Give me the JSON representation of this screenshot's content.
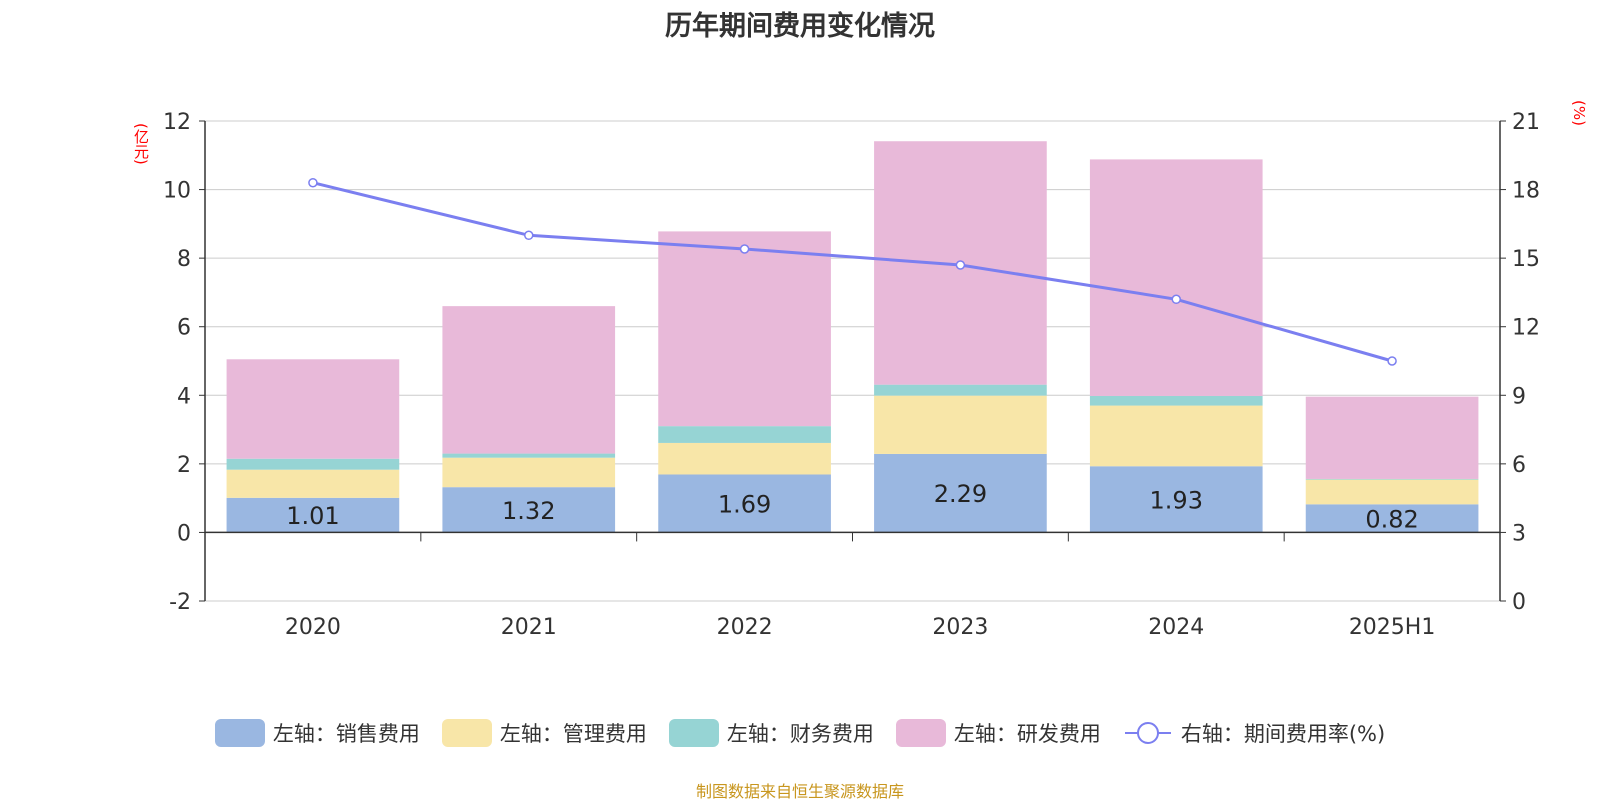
{
  "title": "历年期间费用变化情况",
  "source_note": "制图数据来自恒生聚源数据库",
  "chart_data": {
    "type": "bar",
    "stacked": true,
    "title": "历年期间费用变化情况",
    "categories": [
      "2020",
      "2021",
      "2022",
      "2023",
      "2024",
      "2025H1"
    ],
    "left_axis": {
      "unit": "(亿元)",
      "ylim": [
        -2,
        12
      ],
      "ticks": [
        -2,
        0,
        2,
        4,
        6,
        8,
        10,
        12
      ]
    },
    "right_axis": {
      "unit": "(%)",
      "ylim": [
        0,
        21
      ],
      "ticks": [
        0,
        3,
        6,
        9,
        12,
        15,
        18,
        21
      ]
    },
    "series": [
      {
        "name": "左轴：销售费用",
        "axis": "left",
        "type": "bar",
        "color": "#9ab7e1",
        "values": [
          1.01,
          1.32,
          1.69,
          2.29,
          1.93,
          0.82
        ],
        "show_labels": true
      },
      {
        "name": "左轴：管理费用",
        "axis": "left",
        "type": "bar",
        "color": "#f8e6a8",
        "values": [
          0.82,
          0.86,
          0.92,
          1.7,
          1.77,
          0.72
        ]
      },
      {
        "name": "左轴：财务费用",
        "axis": "left",
        "type": "bar",
        "color": "#96d4d4",
        "values": [
          0.32,
          0.12,
          0.49,
          0.32,
          0.28,
          0.02
        ]
      },
      {
        "name": "左轴：研发费用",
        "axis": "left",
        "type": "bar",
        "color": "#e8b9d9",
        "values": [
          2.9,
          4.3,
          5.68,
          7.1,
          6.9,
          2.4
        ]
      },
      {
        "name": "右轴：期间费用率(%)",
        "axis": "right",
        "type": "line",
        "color": "#7b7ff0",
        "values": [
          18.3,
          16.0,
          15.4,
          14.7,
          13.2,
          10.5
        ]
      }
    ],
    "grid": true,
    "legend_position": "bottom"
  }
}
